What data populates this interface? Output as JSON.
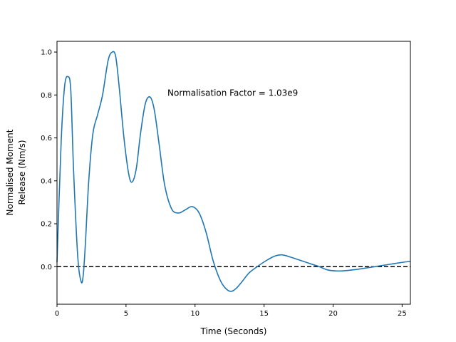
{
  "chart_data": {
    "type": "line",
    "title": "",
    "xlabel": "Time (Seconds)",
    "ylabel_lines": [
      "Normalised Moment",
      "Release (Nm/s)"
    ],
    "xlim": [
      0,
      25.6
    ],
    "ylim": [
      -0.175,
      1.05
    ],
    "xticks": [
      0,
      5,
      10,
      15,
      20,
      25
    ],
    "yticks": [
      0.0,
      0.2,
      0.4,
      0.6,
      0.8,
      1.0
    ],
    "ytick_labels": [
      "0.0",
      "0.2",
      "0.4",
      "0.6",
      "0.8",
      "1.0"
    ],
    "grid": false,
    "legend": "none",
    "annotation": {
      "text": "Normalisation Factor = 1.03e9",
      "x": 8.0,
      "y": 0.81
    },
    "reference_line": {
      "y": 0.0,
      "style": "dashed",
      "color": "#000000"
    },
    "series": [
      {
        "color": "#1f77b4",
        "x": [
          0,
          0.3,
          0.55,
          0.8,
          1.0,
          1.2,
          1.5,
          1.75,
          1.9,
          2.05,
          2.3,
          2.6,
          2.95,
          3.3,
          3.7,
          4.0,
          4.25,
          4.5,
          4.85,
          5.2,
          5.45,
          5.75,
          6.05,
          6.4,
          6.75,
          7.05,
          7.4,
          7.8,
          8.3,
          8.8,
          9.3,
          9.8,
          10.3,
          10.8,
          11.3,
          11.8,
          12.2,
          12.6,
          13.0,
          13.4,
          13.9,
          14.5,
          15.2,
          15.8,
          16.3,
          16.9,
          17.6,
          18.3,
          19.0,
          19.6,
          20.3,
          21.0,
          22.0,
          23.0,
          24.0,
          25.0,
          25.6
        ],
        "y": [
          0.02,
          0.58,
          0.84,
          0.885,
          0.82,
          0.45,
          0.05,
          -0.07,
          -0.04,
          0.1,
          0.4,
          0.62,
          0.71,
          0.8,
          0.96,
          1.0,
          0.98,
          0.84,
          0.6,
          0.43,
          0.395,
          0.46,
          0.62,
          0.76,
          0.79,
          0.73,
          0.57,
          0.38,
          0.27,
          0.25,
          0.265,
          0.28,
          0.25,
          0.16,
          0.03,
          -0.06,
          -0.1,
          -0.115,
          -0.1,
          -0.07,
          -0.03,
          0.0,
          0.03,
          0.05,
          0.055,
          0.045,
          0.03,
          0.015,
          0.0,
          -0.015,
          -0.02,
          -0.018,
          -0.01,
          0.0,
          0.01,
          0.02,
          0.025
        ]
      }
    ]
  },
  "colors": {
    "series": "#1f77b4",
    "reference_line": "#000000",
    "axes": "#000000",
    "background": "#ffffff"
  }
}
